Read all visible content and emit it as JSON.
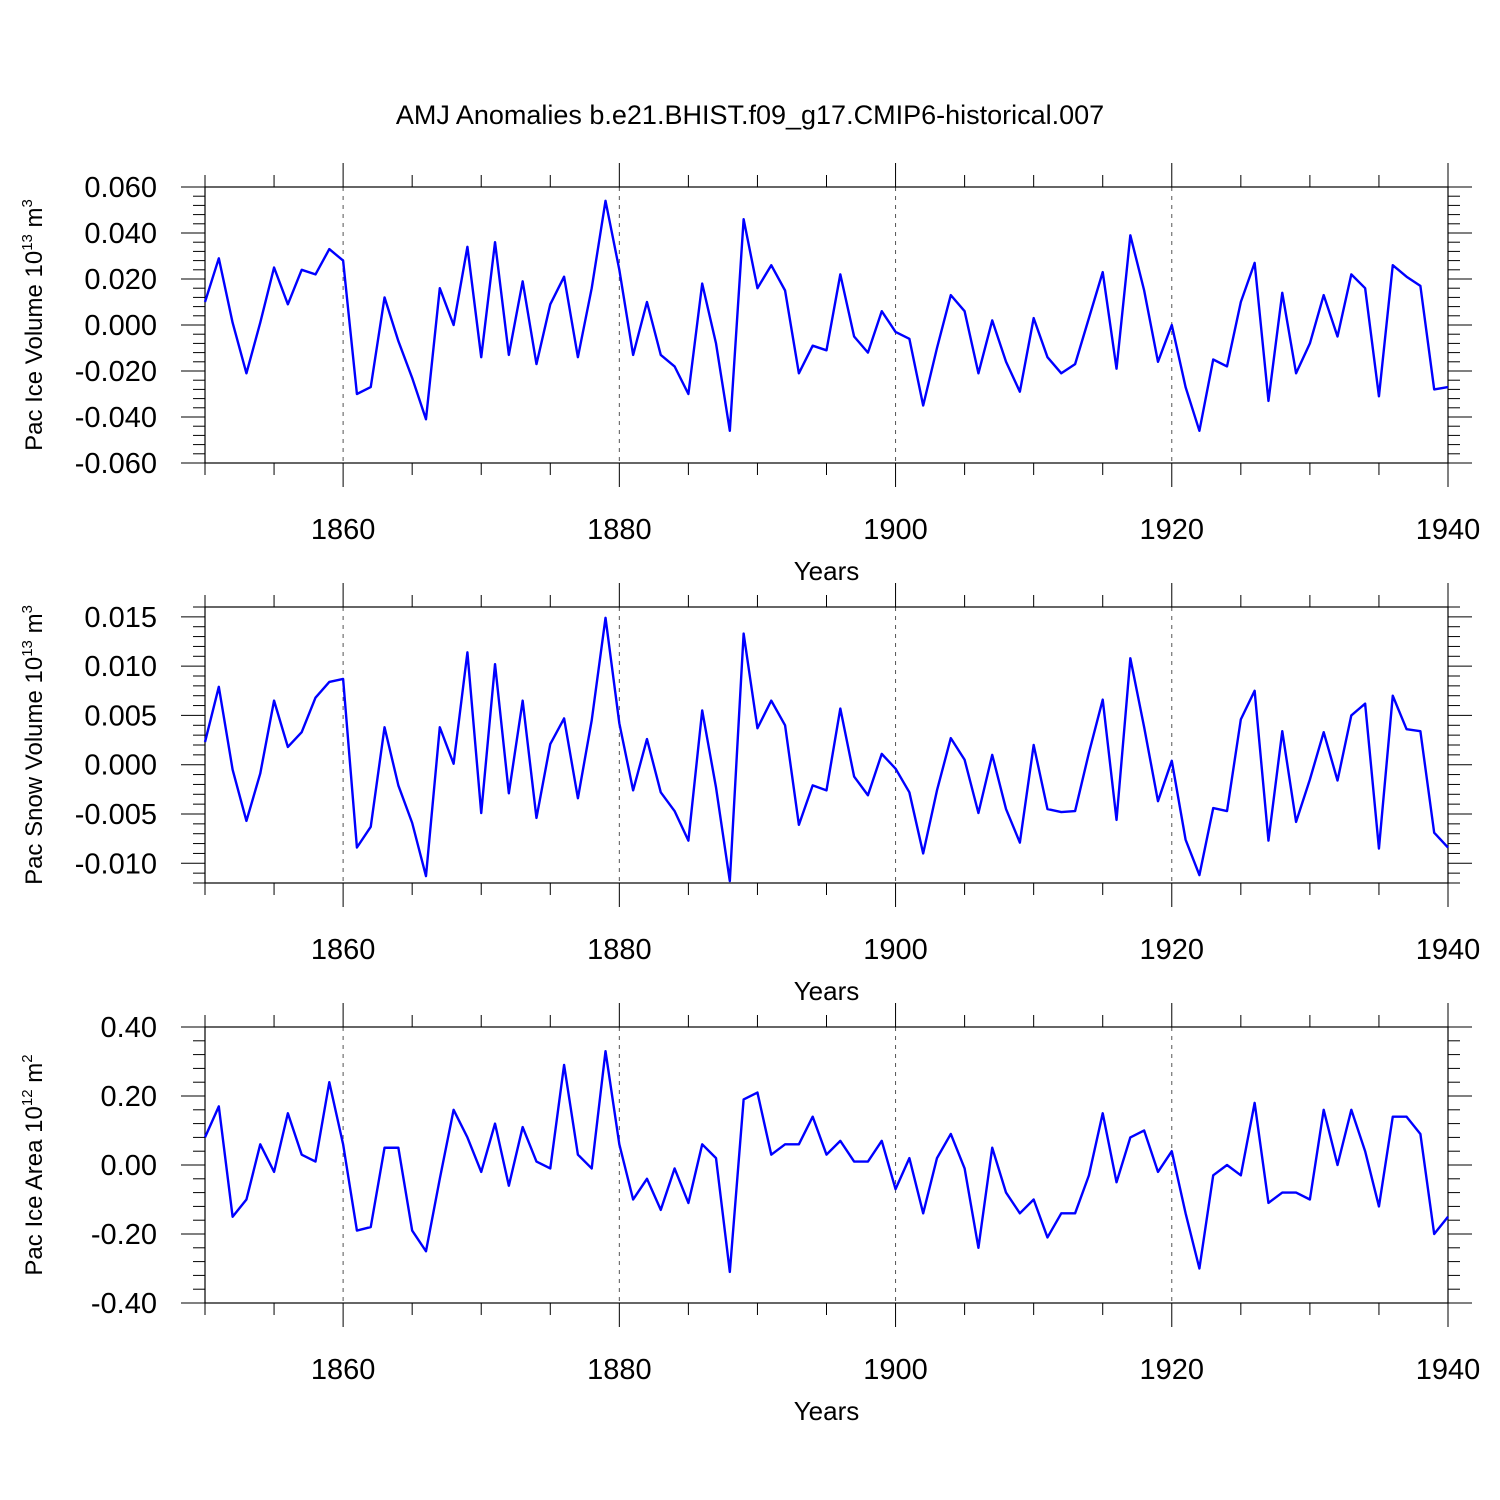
{
  "chart_data": {
    "title": "AMJ Anomalies b.e21.BHIST.f09_g17.CMIP6-historical.007",
    "xlim": [
      1850,
      1940
    ],
    "x": [
      1850,
      1851,
      1852,
      1853,
      1854,
      1855,
      1856,
      1857,
      1858,
      1859,
      1860,
      1861,
      1862,
      1863,
      1864,
      1865,
      1866,
      1867,
      1868,
      1869,
      1870,
      1871,
      1872,
      1873,
      1874,
      1875,
      1876,
      1877,
      1878,
      1879,
      1880,
      1881,
      1882,
      1883,
      1884,
      1885,
      1886,
      1887,
      1888,
      1889,
      1890,
      1891,
      1892,
      1893,
      1894,
      1895,
      1896,
      1897,
      1898,
      1899,
      1900,
      1901,
      1902,
      1903,
      1904,
      1905,
      1906,
      1907,
      1908,
      1909,
      1910,
      1911,
      1912,
      1913,
      1914,
      1915,
      1916,
      1917,
      1918,
      1919,
      1920,
      1921,
      1922,
      1923,
      1924,
      1925,
      1926,
      1927,
      1928,
      1929,
      1930,
      1931,
      1932,
      1933,
      1934,
      1935,
      1936,
      1937,
      1938,
      1939,
      1940
    ],
    "line_color": "#0000ff",
    "panels": [
      {
        "type": "line",
        "name": "ice-volume",
        "ylabel_main": "Pac Ice Volume 10",
        "ylabel_exp": "13",
        "ylabel_unit": " m",
        "ylabel_unit_exp": "3",
        "xlabel": "Years",
        "ylim": [
          -0.06,
          0.06
        ],
        "yticks": [
          -0.06,
          -0.04,
          -0.02,
          0.0,
          0.02,
          0.04,
          0.06
        ],
        "ytick_labels": [
          "-0.060",
          "-0.040",
          "-0.020",
          "0.000",
          "0.020",
          "0.040",
          "0.060"
        ],
        "xticks": [
          1860,
          1880,
          1900,
          1920,
          1940
        ],
        "xtick_labels": [
          "1860",
          "1880",
          "1900",
          "1920",
          "1940"
        ],
        "values": [
          0.01,
          0.029,
          0.001,
          -0.021,
          0.001,
          0.025,
          0.009,
          0.024,
          0.022,
          0.033,
          0.028,
          -0.03,
          -0.027,
          0.012,
          -0.007,
          -0.023,
          -0.041,
          0.016,
          0.0,
          0.034,
          -0.014,
          0.036,
          -0.013,
          0.019,
          -0.017,
          0.009,
          0.021,
          -0.014,
          0.016,
          0.054,
          0.024,
          -0.013,
          0.01,
          -0.013,
          -0.018,
          -0.03,
          0.018,
          -0.008,
          -0.046,
          0.046,
          0.016,
          0.026,
          0.015,
          -0.021,
          -0.009,
          -0.011,
          0.022,
          -0.005,
          -0.012,
          0.006,
          -0.003,
          -0.006,
          -0.035,
          -0.01,
          0.013,
          0.006,
          -0.021,
          0.002,
          -0.016,
          -0.029,
          0.003,
          -0.014,
          -0.021,
          -0.017,
          0.003,
          0.023,
          -0.019,
          0.039,
          0.015,
          -0.016,
          0.0,
          -0.027,
          -0.046,
          -0.015,
          -0.018,
          0.01,
          0.027,
          -0.033,
          0.014,
          -0.021,
          -0.008,
          0.013,
          -0.005,
          0.022,
          0.016,
          -0.031,
          0.026,
          0.021,
          0.017,
          -0.028,
          -0.027
        ]
      },
      {
        "type": "line",
        "name": "snow-volume",
        "ylabel_main": "Pac Snow Volume 10",
        "ylabel_exp": "13",
        "ylabel_unit": " m",
        "ylabel_unit_exp": "3",
        "xlabel": "Years",
        "ylim": [
          -0.012,
          0.016
        ],
        "yticks": [
          -0.01,
          -0.005,
          0.0,
          0.005,
          0.01,
          0.015
        ],
        "ytick_labels": [
          "-0.010",
          "-0.005",
          "0.000",
          "0.005",
          "0.010",
          "0.015"
        ],
        "xticks": [
          1860,
          1880,
          1900,
          1920,
          1940
        ],
        "xtick_labels": [
          "1860",
          "1880",
          "1900",
          "1920",
          "1940"
        ],
        "values": [
          0.0023,
          0.0079,
          -0.0005,
          -0.0057,
          -0.0009,
          0.0065,
          0.0018,
          0.0033,
          0.0068,
          0.0084,
          0.0087,
          -0.0084,
          -0.0063,
          0.0038,
          -0.0021,
          -0.0059,
          -0.0113,
          0.0038,
          0.0001,
          0.0114,
          -0.0049,
          0.0102,
          -0.0029,
          0.0065,
          -0.0054,
          0.0021,
          0.0047,
          -0.0034,
          0.0045,
          0.0149,
          0.0042,
          -0.0026,
          0.0026,
          -0.0028,
          -0.0047,
          -0.0077,
          0.0055,
          -0.0023,
          -0.0118,
          0.0133,
          0.0037,
          0.0065,
          0.004,
          -0.0061,
          -0.0021,
          -0.0026,
          0.0057,
          -0.0012,
          -0.0031,
          0.0011,
          -0.0004,
          -0.0028,
          -0.009,
          -0.0026,
          0.0027,
          0.0005,
          -0.0049,
          0.001,
          -0.0045,
          -0.0079,
          0.002,
          -0.0045,
          -0.0048,
          -0.0047,
          0.0012,
          0.0066,
          -0.0056,
          0.0108,
          0.0038,
          -0.0037,
          0.0004,
          -0.0076,
          -0.0112,
          -0.0044,
          -0.0047,
          0.0046,
          0.0075,
          -0.0077,
          0.0034,
          -0.0058,
          -0.0015,
          0.0033,
          -0.0016,
          0.005,
          0.0062,
          -0.0085,
          0.007,
          0.0036,
          0.0034,
          -0.0069,
          -0.0084
        ]
      },
      {
        "type": "line",
        "name": "ice-area",
        "ylabel_main": "Pac Ice Area 10",
        "ylabel_exp": "12",
        "ylabel_unit": " m",
        "ylabel_unit_exp": "2",
        "xlabel": "Years",
        "ylim": [
          -0.4,
          0.4
        ],
        "yticks": [
          -0.4,
          -0.2,
          0.0,
          0.2,
          0.4
        ],
        "ytick_labels": [
          "-0.40",
          "-0.20",
          "0.00",
          "0.20",
          "0.40"
        ],
        "xticks": [
          1860,
          1880,
          1900,
          1920,
          1940
        ],
        "xtick_labels": [
          "1860",
          "1880",
          "1900",
          "1920",
          "1940"
        ],
        "values": [
          0.08,
          0.17,
          -0.15,
          -0.1,
          0.06,
          -0.02,
          0.15,
          0.03,
          0.01,
          0.24,
          0.06,
          -0.19,
          -0.18,
          0.05,
          0.05,
          -0.19,
          -0.25,
          -0.04,
          0.16,
          0.08,
          -0.02,
          0.12,
          -0.06,
          0.11,
          0.01,
          -0.01,
          0.29,
          0.03,
          -0.01,
          0.33,
          0.06,
          -0.1,
          -0.04,
          -0.13,
          -0.01,
          -0.11,
          0.06,
          0.02,
          -0.31,
          0.19,
          0.21,
          0.03,
          0.06,
          0.06,
          0.14,
          0.03,
          0.07,
          0.01,
          0.01,
          0.07,
          -0.07,
          0.02,
          -0.14,
          0.02,
          0.09,
          -0.01,
          -0.24,
          0.05,
          -0.08,
          -0.14,
          -0.1,
          -0.21,
          -0.14,
          -0.14,
          -0.03,
          0.15,
          -0.05,
          0.08,
          0.1,
          -0.02,
          0.04,
          -0.14,
          -0.3,
          -0.03,
          0.0,
          -0.03,
          0.18,
          -0.11,
          -0.08,
          -0.08,
          -0.1,
          0.16,
          0.0,
          0.16,
          0.04,
          -0.12,
          0.14,
          0.14,
          0.09,
          -0.2,
          -0.15
        ]
      }
    ]
  }
}
